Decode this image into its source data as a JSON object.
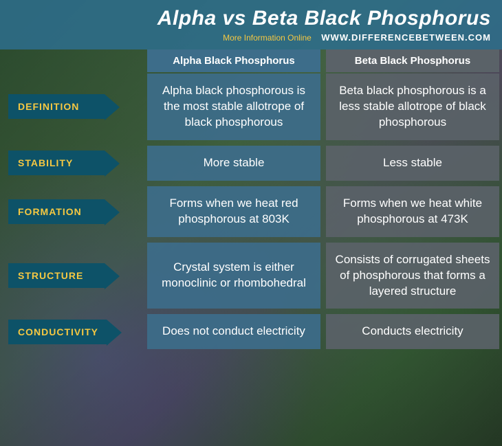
{
  "header": {
    "title": "Alpha vs Beta Black Phosphorus",
    "more_info": "More Information Online",
    "site_url": "WWW.DIFFERENCEBETWEEN.COM"
  },
  "columns": {
    "alpha": "Alpha Black Phosphorus",
    "beta": "Beta Black Phosphorus"
  },
  "rows": [
    {
      "label": "DEFINITION",
      "alpha": "Alpha black phosphorous is the most stable allotrope of black phosphorous",
      "beta": "Beta black phosphorous is a less stable allotrope of black phosphorous"
    },
    {
      "label": "STABILITY",
      "alpha": "More stable",
      "beta": "Less stable"
    },
    {
      "label": "FORMATION",
      "alpha": "Forms when we heat red phosphorous at 803K",
      "beta": "Forms when we heat white phosphorous at 473K"
    },
    {
      "label": "STRUCTURE",
      "alpha": "Crystal system is either monoclinic or rhombohedral",
      "beta": "Consists of corrugated sheets of phosphorous that forms a layered structure"
    },
    {
      "label": "CONDUCTIVITY",
      "alpha": "Does not conduct electricity",
      "beta": "Conducts electricity"
    }
  ],
  "style": {
    "header_bg": "rgba(46,109,139,0.88)",
    "label_bg": "#0d5268",
    "label_text": "#f5c842",
    "col_header_alpha_bg": "#3d6d8a",
    "col_header_beta_bg": "#5a6268",
    "cell_alpha_bg": "rgba(61,109,138,0.92)",
    "cell_beta_bg": "rgba(90,98,104,0.92)",
    "title_color": "#ffffff",
    "accent_color": "#f5c842"
  }
}
